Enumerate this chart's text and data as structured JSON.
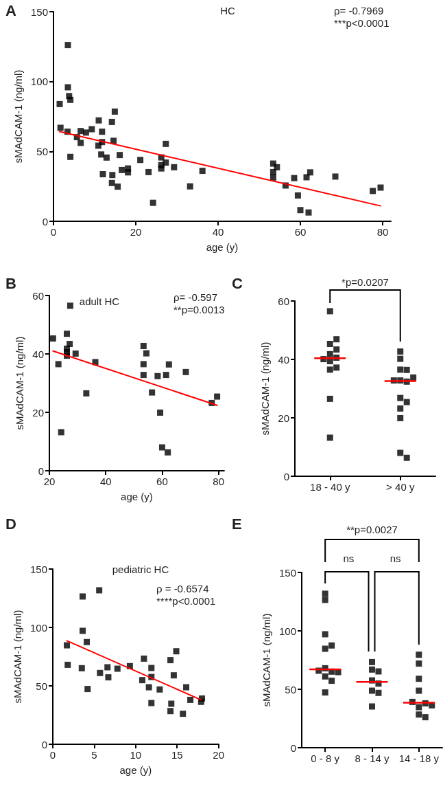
{
  "chart_data": [
    {
      "type": "scatter",
      "title": "HC",
      "xlabel": "age (y)",
      "ylabel": "sMAdCAM-1 (ng/ml)",
      "annotations": [
        "A",
        "ρ= -0.7969",
        "***p<0.0001"
      ],
      "xlim": [
        0,
        82
      ],
      "xticks": [
        0,
        20,
        40,
        60,
        80
      ],
      "ylim": [
        0,
        150
      ],
      "yticks": [
        0,
        50,
        100,
        150
      ],
      "marker": "square",
      "series": [
        {
          "color": "#000000",
          "x": [
            3.5,
            1.5,
            3.5,
            3.8,
            4.1,
            1.7,
            3.4,
            4.1,
            5.7,
            6.6,
            6.6,
            7.9,
            9.3,
            11.0,
            10.9,
            11.8,
            11.8,
            11.6,
            12.9,
            12.0,
            14.2,
            14.9,
            14.6,
            16.1,
            14.3,
            14.2,
            15.6,
            16.6,
            18.1,
            18.1,
            21.1,
            23.1,
            26.2,
            27.3,
            27.3,
            26.2,
            26.2,
            29.3,
            33.2,
            36.2,
            53.4,
            54.3,
            53.4,
            53.4,
            56.4,
            58.5,
            59.4,
            61.5,
            62.4,
            68.5,
            77.6,
            79.5,
            24.2,
            60.0,
            62.0
          ],
          "values": [
            126.1,
            83.9,
            95.9,
            89.6,
            86.9,
            66.9,
            64.1,
            46.1,
            60.2,
            64.6,
            56.1,
            63.5,
            65.9,
            72.2,
            54.1,
            64.1,
            56.7,
            47.8,
            45.6,
            33.7,
            71.1,
            78.5,
            57.6,
            47.4,
            33.1,
            27.4,
            24.8,
            36.7,
            37.8,
            35.0,
            43.9,
            35.2,
            45.7,
            55.4,
            42.0,
            40.2,
            37.8,
            38.7,
            25.0,
            36.1,
            41.3,
            38.7,
            35.2,
            31.3,
            25.6,
            30.9,
            18.5,
            31.5,
            35.0,
            32.0,
            21.7,
            24.1,
            13.2,
            8.0,
            6.3
          ]
        },
        {
          "type": "line",
          "color": "#ff0000",
          "marker": "none",
          "x": [
            1.5,
            79.5
          ],
          "values": [
            64.2,
            11.0
          ]
        }
      ]
    },
    {
      "type": "scatter",
      "title": "adult HC",
      "xlabel": "age (y)",
      "ylabel": "sMAdCAM-1 (ng/ml)",
      "annotations": [
        "B",
        "ρ= -0.597",
        "**p=0.0013"
      ],
      "xlim": [
        20,
        82
      ],
      "xticks": [
        20,
        40,
        60,
        80
      ],
      "ylim": [
        0,
        60
      ],
      "yticks": [
        0,
        20,
        40,
        60
      ],
      "marker": "square",
      "series": [
        {
          "color": "#000000",
          "x": [
            21.3,
            27.4,
            26.2,
            27.2,
            26.2,
            26.2,
            26.2,
            29.3,
            23.2,
            36.3,
            33.1,
            24.2,
            53.4,
            54.4,
            53.4,
            53.4,
            58.4,
            61.4,
            62.4,
            68.4,
            56.4,
            59.3,
            77.6,
            79.5,
            60.0,
            62.0
          ],
          "values": [
            45.3,
            56.5,
            46.9,
            43.4,
            41.8,
            40.6,
            39.4,
            40.1,
            36.5,
            37.2,
            26.5,
            13.2,
            42.7,
            40.2,
            36.5,
            32.8,
            32.4,
            32.8,
            36.4,
            33.8,
            26.8,
            19.9,
            23.2,
            25.4,
            8.0,
            6.3
          ]
        },
        {
          "type": "line",
          "color": "#ff0000",
          "marker": "none",
          "x": [
            21.3,
            79.5
          ],
          "values": [
            41.0,
            22.4
          ]
        }
      ]
    },
    {
      "type": "scatter",
      "ylabel": "sMAdCAM-1 (ng/ml)",
      "annotations": [
        "C",
        "*p=0.0207"
      ],
      "categories": [
        "18 - 40 y",
        "> 40 y"
      ],
      "ylim": [
        0,
        60
      ],
      "yticks": [
        0,
        20,
        40,
        60
      ],
      "marker": "square",
      "series": [
        {
          "color": "#000000",
          "x": [
            "18 - 40 y",
            "18 - 40 y",
            "18 - 40 y",
            "18 - 40 y",
            "18 - 40 y",
            "18 - 40 y",
            "18 - 40 y",
            "18 - 40 y",
            "18 - 40 y",
            "18 - 40 y",
            "18 - 40 y",
            "18 - 40 y",
            "> 40 y",
            "> 40 y",
            "> 40 y",
            "> 40 y",
            "> 40 y",
            "> 40 y",
            "> 40 y",
            "> 40 y",
            "> 40 y",
            "> 40 y",
            "> 40 y",
            "> 40 y",
            "> 40 y",
            "> 40 y"
          ],
          "values": [
            45.3,
            56.5,
            46.9,
            43.4,
            41.8,
            40.6,
            39.4,
            40.1,
            36.5,
            37.2,
            26.5,
            13.2,
            42.7,
            40.2,
            36.5,
            32.8,
            32.4,
            32.8,
            36.4,
            33.8,
            26.8,
            19.9,
            23.2,
            25.4,
            8.0,
            6.3
          ]
        },
        {
          "type": "box",
          "color": "#ff0000",
          "boxes": [
            {
              "low": 40.4,
              "q1": 40.4,
              "median": 40.4,
              "q3": 40.4,
              "high": 40.4
            },
            {
              "low": 32.6,
              "q1": 32.6,
              "median": 32.6,
              "q3": 32.6,
              "high": 32.6
            }
          ]
        }
      ]
    },
    {
      "type": "scatter",
      "title": "pediatric HC",
      "xlabel": "age (y)",
      "ylabel": "sMAdCAM-1 (ng/ml)",
      "annotations": [
        "D",
        "ρ = -0.6574",
        "****p<0.0001"
      ],
      "xlim": [
        0,
        20
      ],
      "xticks": [
        0,
        5,
        10,
        15,
        20
      ],
      "ylim": [
        0,
        150
      ],
      "yticks": [
        0,
        50,
        100,
        150
      ],
      "marker": "square",
      "series": [
        {
          "color": "#000000",
          "x": [
            1.7,
            1.8,
            3.6,
            3.6,
            4.1,
            3.5,
            4.2,
            5.6,
            5.7,
            6.6,
            6.7,
            7.8,
            9.3,
            11.0,
            11.9,
            11.9,
            10.8,
            11.6,
            12.9,
            11.9,
            14.9,
            14.2,
            14.6,
            14.3,
            14.2,
            15.7,
            16.1,
            16.6,
            18.0,
            17.9
          ],
          "values": [
            84.7,
            68.0,
            126.5,
            97.1,
            87.5,
            65.1,
            47.3,
            131.8,
            61.0,
            65.9,
            57.3,
            64.7,
            66.9,
            73.3,
            65.3,
            57.6,
            54.9,
            48.8,
            46.9,
            35.3,
            79.6,
            72.0,
            59.0,
            34.7,
            28.4,
            26.1,
            48.8,
            38.0,
            39.2,
            36.3
          ]
        },
        {
          "type": "line",
          "color": "#ff0000",
          "marker": "none",
          "x": [
            1.7,
            17.9
          ],
          "values": [
            88.6,
            38.0
          ]
        }
      ]
    },
    {
      "type": "scatter",
      "ylabel": "sMAdCAM-1 (ng/ml)",
      "annotations": [
        "E",
        "**p=0.0027",
        "ns",
        "ns"
      ],
      "categories": [
        "0 - 8 y",
        "8 - 14 y",
        "14 - 18 y"
      ],
      "ylim": [
        0,
        150
      ],
      "yticks": [
        0,
        50,
        100,
        150
      ],
      "marker": "square",
      "series": [
        {
          "color": "#000000",
          "x": [
            "0 - 8 y",
            "0 - 8 y",
            "0 - 8 y",
            "0 - 8 y",
            "0 - 8 y",
            "0 - 8 y",
            "0 - 8 y",
            "0 - 8 y",
            "0 - 8 y",
            "0 - 8 y",
            "0 - 8 y",
            "0 - 8 y",
            "8 - 14 y",
            "8 - 14 y",
            "8 - 14 y",
            "8 - 14 y",
            "8 - 14 y",
            "8 - 14 y",
            "8 - 14 y",
            "8 - 14 y",
            "14 - 18 y",
            "14 - 18 y",
            "14 - 18 y",
            "14 - 18 y",
            "14 - 18 y",
            "14 - 18 y",
            "14 - 18 y",
            "14 - 18 y",
            "14 - 18 y",
            "14 - 18 y"
          ],
          "values": [
            84.7,
            68.0,
            126.5,
            97.1,
            87.5,
            65.1,
            47.3,
            131.8,
            61.0,
            65.9,
            57.3,
            64.7,
            66.9,
            73.3,
            65.3,
            57.6,
            54.9,
            48.8,
            46.9,
            35.3,
            79.6,
            72.0,
            59.0,
            34.7,
            28.4,
            26.1,
            48.8,
            38.0,
            39.2,
            36.3
          ]
        },
        {
          "type": "box",
          "color": "#ff0000",
          "boxes": [
            {
              "low": 67.0,
              "q1": 67.0,
              "median": 67.0,
              "q3": 67.0,
              "high": 67.0
            },
            {
              "low": 56.3,
              "q1": 56.3,
              "median": 56.3,
              "q3": 56.3,
              "high": 56.3
            },
            {
              "low": 38.6,
              "q1": 38.6,
              "median": 38.6,
              "q3": 38.6,
              "high": 38.6
            }
          ]
        }
      ]
    }
  ]
}
